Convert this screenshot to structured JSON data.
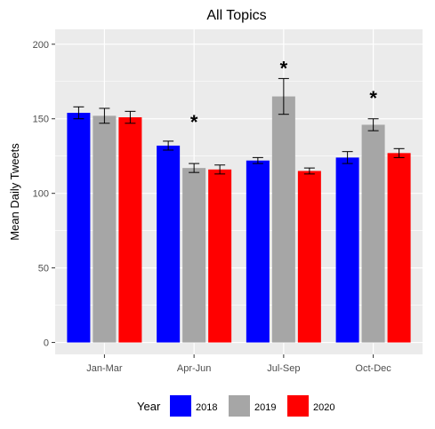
{
  "chart_data": {
    "type": "bar",
    "title": "All Topics",
    "xlabel": "",
    "ylabel": "Mean Daily Tweets",
    "ylim": [
      -8,
      210
    ],
    "yticks": [
      0,
      50,
      100,
      150,
      200
    ],
    "categories": [
      "Jan-Mar",
      "Apr-Jun",
      "Jul-Sep",
      "Oct-Dec"
    ],
    "legend": {
      "title": "Year",
      "placement": "bottom"
    },
    "series": [
      {
        "name": "2018",
        "color": "#0000ff",
        "values": [
          154,
          132,
          122,
          124
        ],
        "err": [
          4,
          3,
          2,
          4
        ]
      },
      {
        "name": "2019",
        "color": "#a6a6a6",
        "values": [
          152,
          117,
          165,
          146
        ],
        "err": [
          5,
          3,
          12,
          4
        ]
      },
      {
        "name": "2020",
        "color": "#ff0000",
        "values": [
          151,
          116,
          115,
          127
        ],
        "err": [
          4,
          3,
          2,
          3
        ]
      }
    ],
    "annotations": [
      {
        "text": "*",
        "category": "Apr-Jun",
        "y": 148
      },
      {
        "text": "*",
        "category": "Jul-Sep",
        "y": 184
      },
      {
        "text": "*",
        "category": "Oct-Dec",
        "y": 164
      }
    ],
    "grid": true,
    "panel_background": "#ebebeb",
    "grid_color": "#ffffff"
  }
}
